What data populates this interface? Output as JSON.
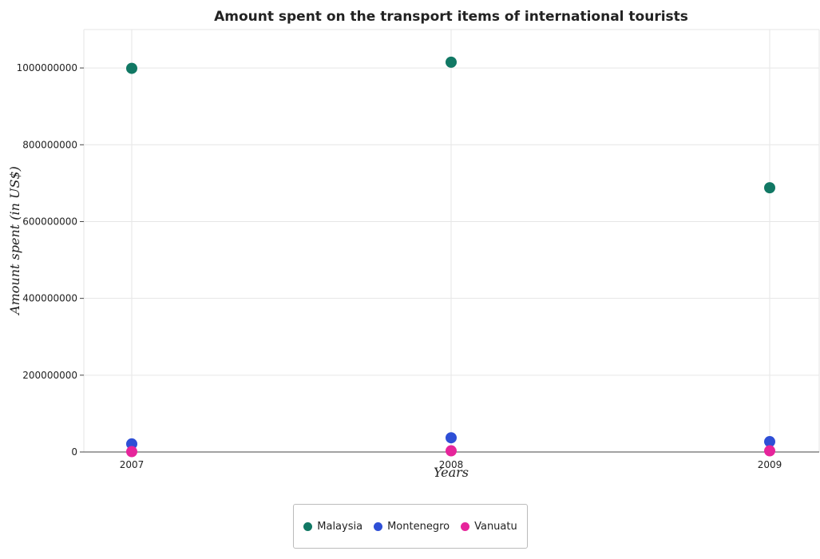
{
  "chart_data": {
    "type": "scatter",
    "title": "Amount spent on the transport items of international tourists",
    "xlabel": "Years",
    "ylabel": "Amount spent (in US$)",
    "categories": [
      "2007",
      "2008",
      "2009"
    ],
    "ylim": [
      0,
      1100000000
    ],
    "yticks": [
      0,
      200000000,
      400000000,
      600000000,
      800000000,
      1000000000
    ],
    "ytick_labels": [
      "0",
      "200000000",
      "400000000",
      "600000000",
      "800000000",
      "1000000000"
    ],
    "grid": true,
    "legend_position": "bottom-center",
    "series": [
      {
        "name": "Malaysia",
        "color": "#117864",
        "values": [
          999000000,
          1015000000,
          688000000
        ]
      },
      {
        "name": "Montenegro",
        "color": "#2e4fd6",
        "values": [
          21000000,
          37000000,
          27000000
        ]
      },
      {
        "name": "Vanuatu",
        "color": "#e6259b",
        "values": [
          1000000,
          3000000,
          3000000
        ]
      }
    ]
  }
}
